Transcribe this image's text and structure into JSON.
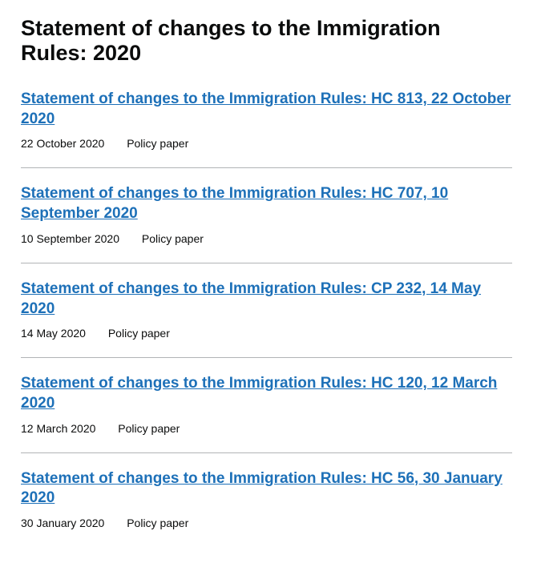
{
  "title": "Statement of changes to the Immigration Rules: 2020",
  "documents": [
    {
      "link_text": "Statement of changes to the Immigration Rules: HC 813, 22 October 2020",
      "date": "22 October 2020",
      "type": "Policy paper"
    },
    {
      "link_text": "Statement of changes to the Immigration Rules: HC 707, 10 September 2020",
      "date": "10 September 2020",
      "type": "Policy paper"
    },
    {
      "link_text": "Statement of changes to the Immigration Rules: CP 232, 14 May 2020",
      "date": "14 May 2020",
      "type": "Policy paper"
    },
    {
      "link_text": "Statement of changes to the Immigration Rules: HC 120, 12 March 2020",
      "date": "12 March 2020",
      "type": "Policy paper"
    },
    {
      "link_text": "Statement of changes to the Immigration Rules: HC 56, 30 January 2020",
      "date": "30 January 2020",
      "type": "Policy paper"
    }
  ],
  "styling": {
    "link_color": "#1d70b8",
    "text_color": "#0b0c0c",
    "divider_color": "#b1b4b6",
    "background_color": "#ffffff",
    "title_fontsize": 27,
    "link_fontsize": 19,
    "meta_fontsize": 14
  }
}
